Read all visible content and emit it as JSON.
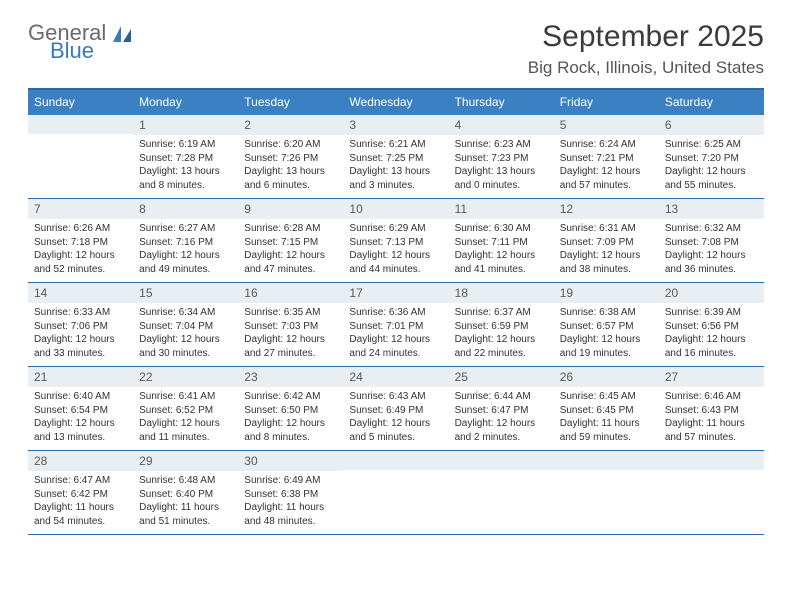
{
  "logo": {
    "part1": "General",
    "part2": "Blue"
  },
  "title": "September 2025",
  "location": "Big Rock, Illinois, United States",
  "colors": {
    "header_bg": "#3a80c2",
    "header_text": "#ffffff",
    "border": "#2a6aa8",
    "num_bg": "#e9eef3",
    "logo_gray": "#6a6a6a",
    "logo_blue": "#3a7ab8"
  },
  "day_names": [
    "Sunday",
    "Monday",
    "Tuesday",
    "Wednesday",
    "Thursday",
    "Friday",
    "Saturday"
  ],
  "weeks": [
    [
      {
        "n": "",
        "sr": "",
        "ss": "",
        "d1": "",
        "d2": ""
      },
      {
        "n": "1",
        "sr": "Sunrise: 6:19 AM",
        "ss": "Sunset: 7:28 PM",
        "d1": "Daylight: 13 hours",
        "d2": "and 8 minutes."
      },
      {
        "n": "2",
        "sr": "Sunrise: 6:20 AM",
        "ss": "Sunset: 7:26 PM",
        "d1": "Daylight: 13 hours",
        "d2": "and 6 minutes."
      },
      {
        "n": "3",
        "sr": "Sunrise: 6:21 AM",
        "ss": "Sunset: 7:25 PM",
        "d1": "Daylight: 13 hours",
        "d2": "and 3 minutes."
      },
      {
        "n": "4",
        "sr": "Sunrise: 6:23 AM",
        "ss": "Sunset: 7:23 PM",
        "d1": "Daylight: 13 hours",
        "d2": "and 0 minutes."
      },
      {
        "n": "5",
        "sr": "Sunrise: 6:24 AM",
        "ss": "Sunset: 7:21 PM",
        "d1": "Daylight: 12 hours",
        "d2": "and 57 minutes."
      },
      {
        "n": "6",
        "sr": "Sunrise: 6:25 AM",
        "ss": "Sunset: 7:20 PM",
        "d1": "Daylight: 12 hours",
        "d2": "and 55 minutes."
      }
    ],
    [
      {
        "n": "7",
        "sr": "Sunrise: 6:26 AM",
        "ss": "Sunset: 7:18 PM",
        "d1": "Daylight: 12 hours",
        "d2": "and 52 minutes."
      },
      {
        "n": "8",
        "sr": "Sunrise: 6:27 AM",
        "ss": "Sunset: 7:16 PM",
        "d1": "Daylight: 12 hours",
        "d2": "and 49 minutes."
      },
      {
        "n": "9",
        "sr": "Sunrise: 6:28 AM",
        "ss": "Sunset: 7:15 PM",
        "d1": "Daylight: 12 hours",
        "d2": "and 47 minutes."
      },
      {
        "n": "10",
        "sr": "Sunrise: 6:29 AM",
        "ss": "Sunset: 7:13 PM",
        "d1": "Daylight: 12 hours",
        "d2": "and 44 minutes."
      },
      {
        "n": "11",
        "sr": "Sunrise: 6:30 AM",
        "ss": "Sunset: 7:11 PM",
        "d1": "Daylight: 12 hours",
        "d2": "and 41 minutes."
      },
      {
        "n": "12",
        "sr": "Sunrise: 6:31 AM",
        "ss": "Sunset: 7:09 PM",
        "d1": "Daylight: 12 hours",
        "d2": "and 38 minutes."
      },
      {
        "n": "13",
        "sr": "Sunrise: 6:32 AM",
        "ss": "Sunset: 7:08 PM",
        "d1": "Daylight: 12 hours",
        "d2": "and 36 minutes."
      }
    ],
    [
      {
        "n": "14",
        "sr": "Sunrise: 6:33 AM",
        "ss": "Sunset: 7:06 PM",
        "d1": "Daylight: 12 hours",
        "d2": "and 33 minutes."
      },
      {
        "n": "15",
        "sr": "Sunrise: 6:34 AM",
        "ss": "Sunset: 7:04 PM",
        "d1": "Daylight: 12 hours",
        "d2": "and 30 minutes."
      },
      {
        "n": "16",
        "sr": "Sunrise: 6:35 AM",
        "ss": "Sunset: 7:03 PM",
        "d1": "Daylight: 12 hours",
        "d2": "and 27 minutes."
      },
      {
        "n": "17",
        "sr": "Sunrise: 6:36 AM",
        "ss": "Sunset: 7:01 PM",
        "d1": "Daylight: 12 hours",
        "d2": "and 24 minutes."
      },
      {
        "n": "18",
        "sr": "Sunrise: 6:37 AM",
        "ss": "Sunset: 6:59 PM",
        "d1": "Daylight: 12 hours",
        "d2": "and 22 minutes."
      },
      {
        "n": "19",
        "sr": "Sunrise: 6:38 AM",
        "ss": "Sunset: 6:57 PM",
        "d1": "Daylight: 12 hours",
        "d2": "and 19 minutes."
      },
      {
        "n": "20",
        "sr": "Sunrise: 6:39 AM",
        "ss": "Sunset: 6:56 PM",
        "d1": "Daylight: 12 hours",
        "d2": "and 16 minutes."
      }
    ],
    [
      {
        "n": "21",
        "sr": "Sunrise: 6:40 AM",
        "ss": "Sunset: 6:54 PM",
        "d1": "Daylight: 12 hours",
        "d2": "and 13 minutes."
      },
      {
        "n": "22",
        "sr": "Sunrise: 6:41 AM",
        "ss": "Sunset: 6:52 PM",
        "d1": "Daylight: 12 hours",
        "d2": "and 11 minutes."
      },
      {
        "n": "23",
        "sr": "Sunrise: 6:42 AM",
        "ss": "Sunset: 6:50 PM",
        "d1": "Daylight: 12 hours",
        "d2": "and 8 minutes."
      },
      {
        "n": "24",
        "sr": "Sunrise: 6:43 AM",
        "ss": "Sunset: 6:49 PM",
        "d1": "Daylight: 12 hours",
        "d2": "and 5 minutes."
      },
      {
        "n": "25",
        "sr": "Sunrise: 6:44 AM",
        "ss": "Sunset: 6:47 PM",
        "d1": "Daylight: 12 hours",
        "d2": "and 2 minutes."
      },
      {
        "n": "26",
        "sr": "Sunrise: 6:45 AM",
        "ss": "Sunset: 6:45 PM",
        "d1": "Daylight: 11 hours",
        "d2": "and 59 minutes."
      },
      {
        "n": "27",
        "sr": "Sunrise: 6:46 AM",
        "ss": "Sunset: 6:43 PM",
        "d1": "Daylight: 11 hours",
        "d2": "and 57 minutes."
      }
    ],
    [
      {
        "n": "28",
        "sr": "Sunrise: 6:47 AM",
        "ss": "Sunset: 6:42 PM",
        "d1": "Daylight: 11 hours",
        "d2": "and 54 minutes."
      },
      {
        "n": "29",
        "sr": "Sunrise: 6:48 AM",
        "ss": "Sunset: 6:40 PM",
        "d1": "Daylight: 11 hours",
        "d2": "and 51 minutes."
      },
      {
        "n": "30",
        "sr": "Sunrise: 6:49 AM",
        "ss": "Sunset: 6:38 PM",
        "d1": "Daylight: 11 hours",
        "d2": "and 48 minutes."
      },
      {
        "n": "",
        "sr": "",
        "ss": "",
        "d1": "",
        "d2": ""
      },
      {
        "n": "",
        "sr": "",
        "ss": "",
        "d1": "",
        "d2": ""
      },
      {
        "n": "",
        "sr": "",
        "ss": "",
        "d1": "",
        "d2": ""
      },
      {
        "n": "",
        "sr": "",
        "ss": "",
        "d1": "",
        "d2": ""
      }
    ]
  ]
}
